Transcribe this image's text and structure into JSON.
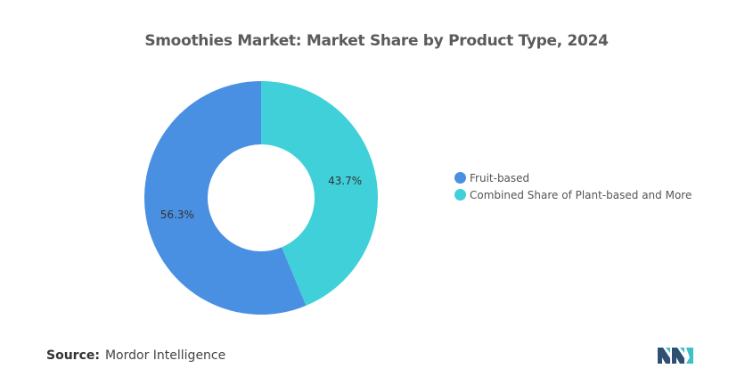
{
  "chart_data": {
    "type": "pie",
    "title": "Smoothies Market: Market Share by Product Type, 2024",
    "categories": [
      "Fruit-based",
      "Combined Share of Plant-based and More"
    ],
    "values": [
      56.3,
      43.7
    ],
    "value_labels": [
      "56.3%",
      "43.7%"
    ],
    "colors": [
      "#4a90e2",
      "#40d0d9"
    ],
    "legend_position": "right"
  },
  "source": {
    "label": "Source:",
    "text": "Mordor Intelligence"
  },
  "logo": {
    "icon": "mordor-intelligence-logo",
    "colors": [
      "#2f4f73",
      "#3fc1c9"
    ]
  }
}
